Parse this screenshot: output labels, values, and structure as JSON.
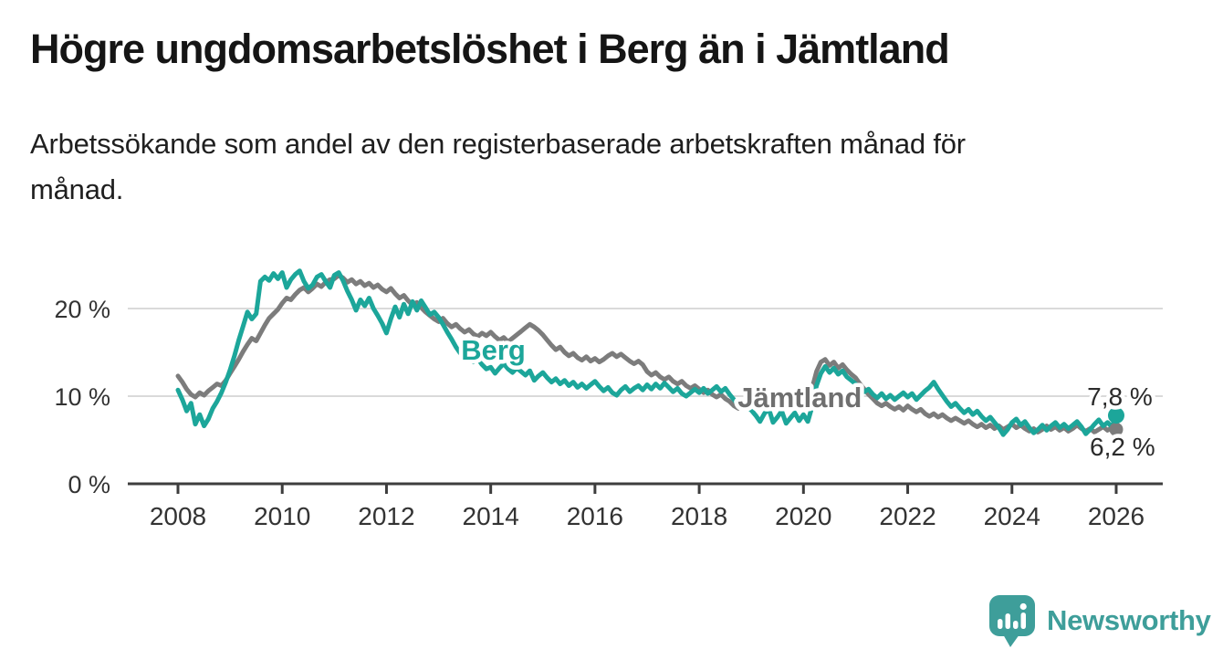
{
  "header": {
    "title": "Högre ungdomsarbetslöshet i Berg än i Jämtland",
    "subtitle_lines": [
      "Arbetssökande som andel av den registerbaserade arbetskraften månad för",
      "månad."
    ]
  },
  "branding": {
    "logo_text": "Newsworthy",
    "logo_color": "#3E9E9A",
    "logo_icon": "bar-chart-speech-bubble-icon"
  },
  "chart_data": {
    "type": "line",
    "unit": "%",
    "x_start_year": 2008,
    "months_per_point": 1,
    "x_tick_years": [
      2008,
      2010,
      2012,
      2014,
      2016,
      2018,
      2020,
      2022,
      2024,
      2026
    ],
    "y_ticks": [
      {
        "value": 0,
        "label": "0 %"
      },
      {
        "value": 10,
        "label": "10 %"
      },
      {
        "value": 20,
        "label": "20 %"
      }
    ],
    "ylim": [
      0,
      26
    ],
    "grid": "horizontal",
    "axis_color": "#3D3D3D",
    "grid_color": "#DADADA",
    "tick_label_color": "#333333",
    "series": [
      {
        "name": "Jämtland",
        "color": "#7C7C7C",
        "end_label": "6,2 %",
        "end_value": 6.2,
        "end_dot_radius": 7.5,
        "values": [
          12.3,
          11.6,
          10.8,
          10.2,
          9.9,
          10.4,
          10.1,
          10.6,
          11.0,
          11.4,
          11.2,
          11.8,
          12.6,
          13.4,
          14.2,
          15.1,
          15.9,
          16.6,
          16.3,
          17.2,
          18.1,
          18.9,
          19.4,
          19.9,
          20.6,
          21.2,
          21.0,
          21.6,
          22.1,
          22.4,
          21.9,
          22.3,
          22.8,
          22.5,
          23.0,
          23.3,
          23.4,
          23.8,
          23.5,
          23.0,
          23.3,
          22.8,
          23.1,
          22.6,
          22.9,
          22.4,
          22.7,
          22.2,
          21.9,
          22.3,
          21.7,
          21.2,
          21.5,
          20.9,
          20.4,
          20.7,
          20.1,
          19.6,
          19.2,
          18.8,
          18.5,
          18.9,
          18.3,
          17.9,
          18.2,
          17.7,
          17.3,
          17.6,
          17.1,
          16.8,
          17.2,
          16.9,
          17.3,
          16.8,
          16.4,
          16.7,
          16.2,
          16.6,
          17.0,
          17.4,
          17.8,
          18.2,
          17.9,
          17.5,
          17.0,
          16.4,
          15.8,
          15.3,
          15.6,
          15.0,
          14.6,
          14.9,
          14.4,
          14.1,
          14.5,
          14.0,
          14.3,
          13.9,
          14.2,
          14.6,
          14.9,
          14.5,
          14.8,
          14.4,
          14.0,
          13.7,
          14.0,
          13.6,
          12.8,
          12.4,
          12.7,
          12.2,
          11.9,
          12.2,
          11.7,
          11.4,
          11.7,
          11.2,
          10.9,
          11.2,
          10.8,
          10.4,
          10.7,
          10.2,
          9.9,
          10.2,
          9.7,
          9.4,
          8.9,
          8.6,
          9.0,
          9.4,
          9.6,
          9.3,
          9.6,
          10.0,
          9.5,
          9.8,
          9.4,
          9.7,
          9.2,
          9.5,
          9.9,
          9.6,
          10.3,
          9.7,
          10.9,
          12.8,
          13.9,
          14.2,
          13.5,
          13.9,
          13.2,
          13.6,
          13.0,
          12.5,
          12.1,
          11.4,
          10.8,
          10.2,
          9.7,
          9.2,
          8.9,
          9.2,
          8.8,
          8.5,
          8.8,
          8.4,
          8.9,
          8.5,
          8.2,
          8.5,
          8.0,
          7.7,
          8.0,
          7.6,
          7.9,
          7.5,
          7.2,
          7.5,
          7.2,
          6.9,
          7.2,
          6.8,
          6.5,
          6.8,
          6.4,
          6.7,
          6.3,
          6.6,
          6.2,
          6.5,
          6.8,
          6.4,
          6.7,
          6.3,
          6.0,
          6.3,
          5.9,
          6.2,
          6.6,
          6.2,
          6.5,
          6.1,
          6.4,
          6.0,
          6.3,
          6.7,
          6.3,
          6.0,
          6.3,
          5.9,
          6.2,
          6.5,
          6.1,
          6.4,
          6.2
        ]
      },
      {
        "name": "Berg",
        "color": "#1CA69A",
        "end_label": "7,8 %",
        "end_value": 7.8,
        "end_dot_radius": 9,
        "values": [
          10.7,
          9.6,
          8.3,
          9.2,
          6.8,
          7.9,
          6.6,
          7.4,
          8.6,
          9.4,
          10.4,
          11.6,
          13.0,
          14.6,
          16.4,
          18.0,
          19.6,
          18.8,
          19.4,
          23.1,
          23.6,
          23.2,
          24.0,
          23.4,
          24.1,
          22.4,
          23.3,
          23.9,
          24.3,
          23.1,
          22.3,
          22.7,
          23.6,
          23.9,
          23.1,
          22.4,
          23.8,
          24.1,
          23.2,
          22.0,
          21.0,
          19.8,
          21.0,
          20.3,
          21.2,
          20.0,
          19.2,
          18.3,
          17.2,
          18.8,
          20.2,
          19.0,
          20.5,
          19.4,
          20.8,
          19.8,
          20.9,
          20.1,
          19.3,
          19.6,
          19.0,
          18.2,
          17.3,
          16.5,
          15.6,
          14.9,
          15.3,
          14.5,
          13.9,
          14.3,
          13.6,
          13.1,
          13.3,
          12.6,
          13.2,
          13.7,
          13.1,
          12.7,
          13.2,
          12.8,
          12.4,
          12.9,
          11.8,
          12.3,
          12.7,
          12.1,
          11.6,
          12.0,
          11.4,
          11.8,
          11.2,
          11.6,
          11.0,
          11.4,
          10.9,
          11.3,
          11.7,
          11.1,
          10.6,
          11.0,
          10.4,
          10.1,
          10.7,
          11.1,
          10.5,
          10.9,
          11.2,
          10.7,
          11.3,
          10.8,
          11.4,
          10.9,
          11.5,
          11.0,
          10.5,
          10.9,
          10.3,
          10.0,
          10.4,
          10.8,
          10.4,
          10.9,
          10.3,
          10.7,
          11.1,
          10.5,
          10.9,
          10.2,
          9.6,
          9.0,
          9.3,
          8.8,
          8.4,
          7.8,
          7.1,
          8.0,
          8.6,
          7.0,
          7.6,
          8.3,
          6.9,
          7.5,
          8.1,
          7.2,
          7.9,
          7.1,
          8.8,
          11.2,
          12.6,
          13.4,
          12.7,
          13.2,
          12.5,
          12.9,
          12.2,
          11.8,
          11.4,
          10.9,
          10.5,
          10.8,
          10.2,
          9.8,
          10.3,
          9.7,
          10.1,
          9.6,
          10.0,
          10.4,
          9.9,
          10.3,
          9.6,
          10.1,
          10.6,
          11.0,
          11.6,
          10.8,
          10.1,
          9.4,
          8.8,
          9.2,
          8.6,
          8.1,
          8.5,
          7.9,
          8.3,
          7.7,
          7.2,
          7.6,
          7.0,
          6.4,
          5.6,
          6.2,
          7.0,
          7.4,
          6.7,
          7.1,
          6.4,
          5.8,
          6.2,
          6.7,
          6.1,
          6.6,
          7.0,
          6.4,
          6.8,
          6.3,
          6.7,
          7.1,
          6.5,
          5.7,
          6.2,
          6.8,
          7.3,
          6.6,
          7.0,
          6.5,
          7.8
        ]
      }
    ],
    "annotations": [
      {
        "text": "Berg",
        "year": 2014.05,
        "value": 15.3,
        "color": "#1CA69A",
        "bold": true,
        "size": 31
      },
      {
        "text": "Jämtland",
        "year": 2019.93,
        "value": 9.9,
        "color": "#6F6F6F",
        "bold": true,
        "size": 31
      },
      {
        "text": "7,8 %",
        "year": 2026.07,
        "value": 10.0,
        "color": "#2B2B2B",
        "bold": false,
        "size": 28
      },
      {
        "text": "6,2 %",
        "year": 2026.12,
        "value": 4.25,
        "color": "#2B2B2B",
        "bold": false,
        "size": 28
      }
    ]
  }
}
